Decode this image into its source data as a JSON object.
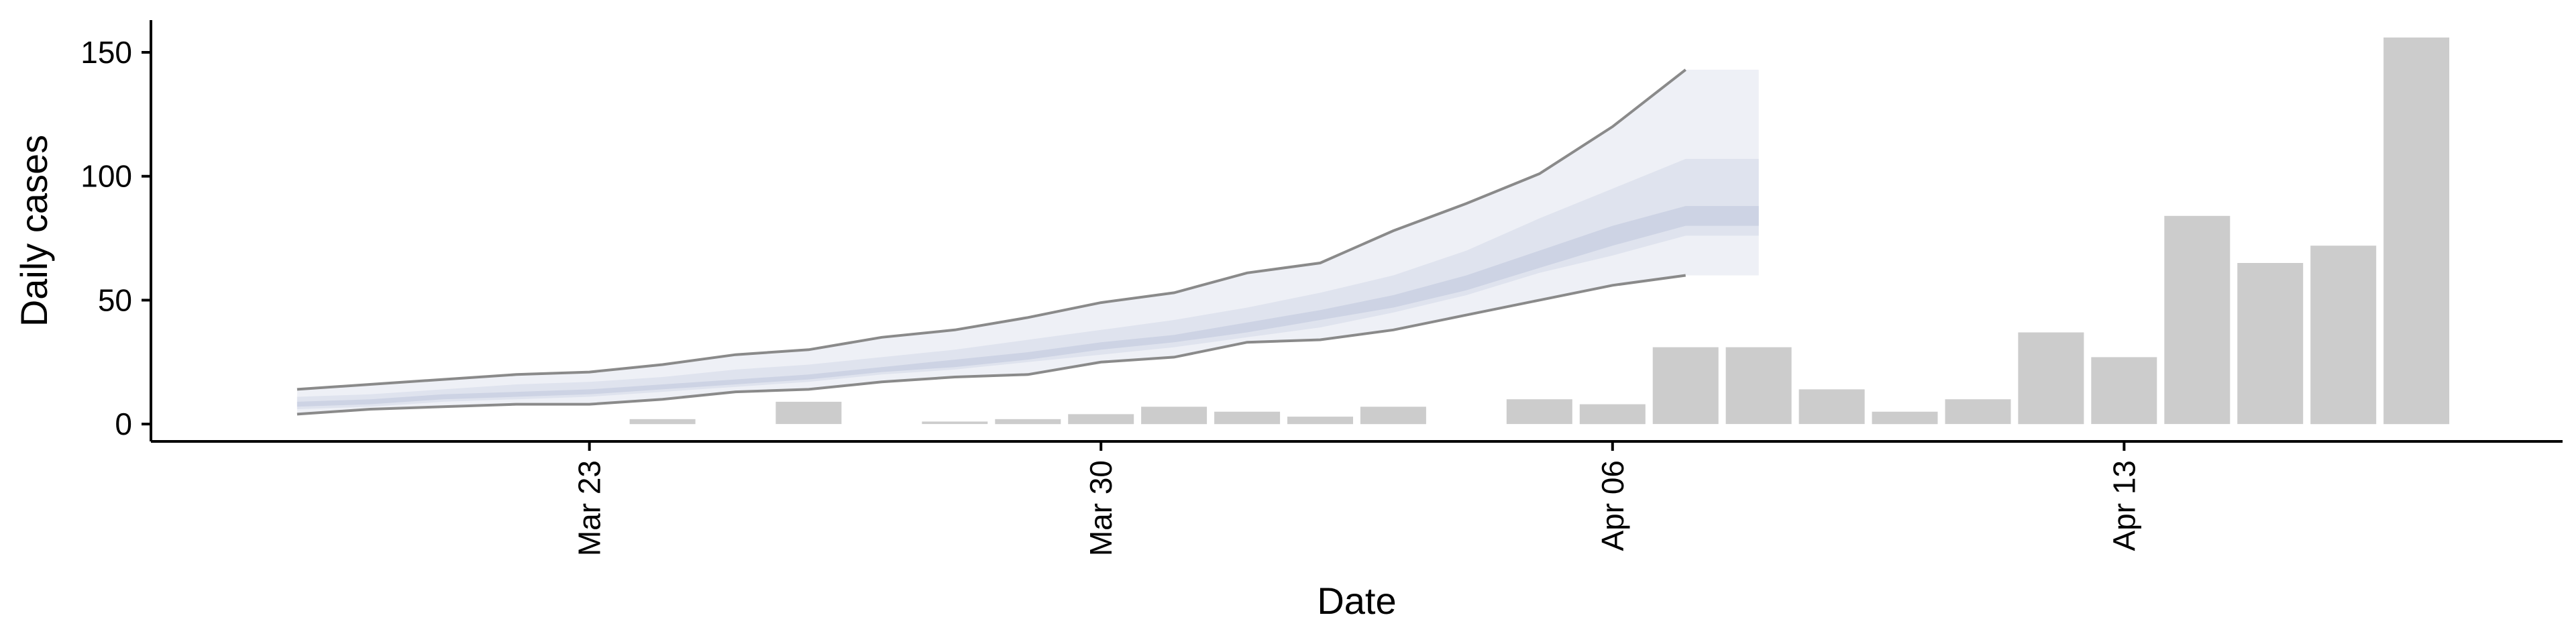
{
  "chart_data": {
    "type": "bar",
    "xlabel": "Date",
    "ylabel": "Daily cases",
    "ylim": [
      -7,
      163
    ],
    "yticks": [
      0,
      50,
      100,
      150
    ],
    "xticks": [
      {
        "date": "2020-03-23",
        "label": "Mar 23"
      },
      {
        "date": "2020-03-30",
        "label": "Mar 30"
      },
      {
        "date": "2020-04-06",
        "label": "Apr 06"
      },
      {
        "date": "2020-04-13",
        "label": "Apr 13"
      }
    ],
    "grid": false,
    "bars": {
      "color": "#cccccc",
      "dates": [
        "2020-03-24",
        "2020-03-26",
        "2020-03-28",
        "2020-03-29",
        "2020-03-30",
        "2020-03-31",
        "2020-04-01",
        "2020-04-02",
        "2020-04-03",
        "2020-04-05",
        "2020-04-06",
        "2020-04-07",
        "2020-04-08",
        "2020-04-09",
        "2020-04-10",
        "2020-04-11",
        "2020-04-12",
        "2020-04-13",
        "2020-04-14",
        "2020-04-15",
        "2020-04-16",
        "2020-04-17"
      ],
      "values": [
        2,
        9,
        1,
        2,
        4,
        7,
        5,
        3,
        7,
        10,
        8,
        31,
        31,
        14,
        5,
        10,
        37,
        27,
        84,
        65,
        72,
        156
      ]
    },
    "forecast": {
      "dates": [
        "2020-03-19",
        "2020-03-20",
        "2020-03-21",
        "2020-03-22",
        "2020-03-23",
        "2020-03-24",
        "2020-03-25",
        "2020-03-26",
        "2020-03-27",
        "2020-03-28",
        "2020-03-29",
        "2020-03-30",
        "2020-03-31",
        "2020-04-01",
        "2020-04-02",
        "2020-04-03",
        "2020-04-04",
        "2020-04-05",
        "2020-04-06",
        "2020-04-07",
        "2020-04-08"
      ],
      "upper_outer": [
        14,
        16,
        18,
        20,
        21,
        24,
        28,
        30,
        35,
        38,
        43,
        49,
        53,
        61,
        65,
        78,
        89,
        101,
        120,
        143,
        143
      ],
      "lower_outer": [
        4,
        6,
        7,
        8,
        8,
        10,
        13,
        14,
        17,
        19,
        20,
        25,
        27,
        33,
        34,
        38,
        44,
        50,
        56,
        60,
        60
      ],
      "upper_mid": [
        11,
        12,
        14,
        16,
        17,
        19,
        22,
        24,
        27,
        30,
        34,
        38,
        42,
        47,
        53,
        60,
        70,
        83,
        95,
        107,
        107
      ],
      "lower_mid": [
        6,
        7,
        9,
        10,
        11,
        13,
        15,
        17,
        20,
        22,
        25,
        28,
        31,
        35,
        39,
        45,
        52,
        61,
        68,
        76,
        76
      ],
      "upper_inner": [
        9,
        10,
        12,
        13,
        14,
        16,
        18,
        20,
        23,
        26,
        29,
        33,
        36,
        41,
        46,
        52,
        60,
        70,
        80,
        88,
        88
      ],
      "lower_inner": [
        7,
        8,
        10,
        11,
        12,
        14,
        16,
        18,
        21,
        23,
        26,
        30,
        33,
        37,
        42,
        47,
        54,
        63,
        72,
        80,
        80
      ],
      "colors": {
        "outer_band": "#eef0f6",
        "mid_band": "#dfe3ee",
        "inner_band": "#cdd3e4",
        "upper_line": "#8a8a8a",
        "lower_line": "#8a8a8a"
      }
    }
  }
}
